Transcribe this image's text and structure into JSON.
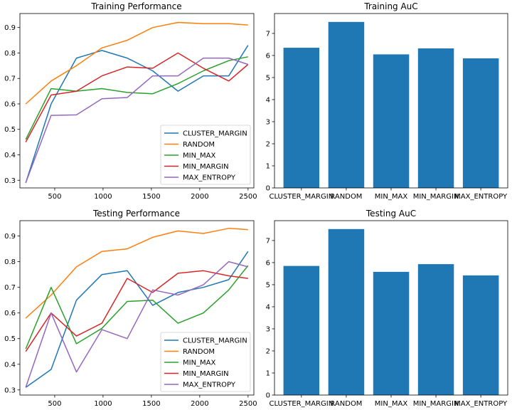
{
  "figure": {
    "panels": [
      {
        "id": "train-line",
        "title": "Training Performance"
      },
      {
        "id": "train-bar",
        "title": "Training AuC"
      },
      {
        "id": "test-line",
        "title": "Testing Performance"
      },
      {
        "id": "test-bar",
        "title": "Testing AuC"
      }
    ]
  },
  "colors": {
    "CLUSTER_MARGIN": "#1f77b4",
    "RANDOM": "#ff7f0e",
    "MIN_MAX": "#2ca02c",
    "MIN_MARGIN": "#d62728",
    "MAX_ENTROPY": "#9467bd",
    "bar": "#1f77b4"
  },
  "chart_data": [
    {
      "type": "line",
      "title": "Training Performance",
      "xlim": [
        140,
        2560
      ],
      "ylim": [
        0.27,
        0.955
      ],
      "xticks": [
        500,
        1000,
        1500,
        2000,
        2500
      ],
      "yticks": [
        0.3,
        0.4,
        0.5,
        0.6,
        0.7,
        0.8,
        0.9
      ],
      "x": [
        200,
        463,
        725,
        988,
        1250,
        1513,
        1775,
        2038,
        2300,
        2500
      ],
      "legend": "lower-right",
      "grid": false,
      "series": [
        {
          "name": "CLUSTER_MARGIN",
          "values": [
            0.29,
            0.6,
            0.78,
            0.81,
            0.78,
            0.73,
            0.65,
            0.71,
            0.71,
            0.83
          ]
        },
        {
          "name": "RANDOM",
          "values": [
            0.6,
            0.69,
            0.75,
            0.82,
            0.85,
            0.9,
            0.92,
            0.915,
            0.915,
            0.91
          ]
        },
        {
          "name": "MIN_MAX",
          "values": [
            0.46,
            0.66,
            0.65,
            0.66,
            0.645,
            0.64,
            0.68,
            0.73,
            0.77,
            0.785
          ]
        },
        {
          "name": "MIN_MARGIN",
          "values": [
            0.45,
            0.635,
            0.65,
            0.71,
            0.745,
            0.74,
            0.8,
            0.74,
            0.69,
            0.755
          ]
        },
        {
          "name": "MAX_ENTROPY",
          "values": [
            0.29,
            0.555,
            0.557,
            0.62,
            0.625,
            0.71,
            0.71,
            0.78,
            0.78,
            0.755
          ]
        }
      ]
    },
    {
      "type": "bar",
      "title": "Training AuC",
      "categories": [
        "CLUSTER_MARGIN",
        "RANDOM",
        "MIN_MAX",
        "MIN_MARGIN",
        "MAX_ENTROPY"
      ],
      "values": [
        6.35,
        7.52,
        6.05,
        6.32,
        5.87
      ],
      "ylim": [
        0,
        7.9
      ],
      "yticks": [
        0,
        1,
        2,
        3,
        4,
        5,
        6,
        7
      ],
      "grid": false
    },
    {
      "type": "line",
      "title": "Testing Performance",
      "xlim": [
        140,
        2560
      ],
      "ylim": [
        0.28,
        0.96
      ],
      "xticks": [
        500,
        1000,
        1500,
        2000,
        2500
      ],
      "yticks": [
        0.3,
        0.4,
        0.5,
        0.6,
        0.7,
        0.8,
        0.9
      ],
      "x": [
        200,
        463,
        725,
        988,
        1250,
        1513,
        1775,
        2038,
        2300,
        2500
      ],
      "legend": "lower-right",
      "grid": false,
      "series": [
        {
          "name": "CLUSTER_MARGIN",
          "values": [
            0.31,
            0.38,
            0.65,
            0.75,
            0.765,
            0.63,
            0.68,
            0.7,
            0.73,
            0.84
          ]
        },
        {
          "name": "RANDOM",
          "values": [
            0.58,
            0.67,
            0.78,
            0.84,
            0.85,
            0.895,
            0.92,
            0.91,
            0.93,
            0.925
          ]
        },
        {
          "name": "MIN_MAX",
          "values": [
            0.46,
            0.7,
            0.48,
            0.54,
            0.645,
            0.65,
            0.56,
            0.6,
            0.69,
            0.785
          ]
        },
        {
          "name": "MIN_MARGIN",
          "values": [
            0.45,
            0.6,
            0.51,
            0.56,
            0.735,
            0.68,
            0.755,
            0.765,
            0.745,
            0.735
          ]
        },
        {
          "name": "MAX_ENTROPY",
          "values": [
            0.31,
            0.6,
            0.37,
            0.535,
            0.5,
            0.69,
            0.67,
            0.71,
            0.8,
            0.78
          ]
        }
      ]
    },
    {
      "type": "bar",
      "title": "Testing AuC",
      "categories": [
        "CLUSTER_MARGIN",
        "RANDOM",
        "MIN_MAX",
        "MIN_MARGIN",
        "MAX_ENTROPY"
      ],
      "values": [
        5.85,
        7.52,
        5.58,
        5.93,
        5.42
      ],
      "ylim": [
        0,
        7.9
      ],
      "yticks": [
        0,
        1,
        2,
        3,
        4,
        5,
        6,
        7
      ],
      "grid": false
    }
  ]
}
